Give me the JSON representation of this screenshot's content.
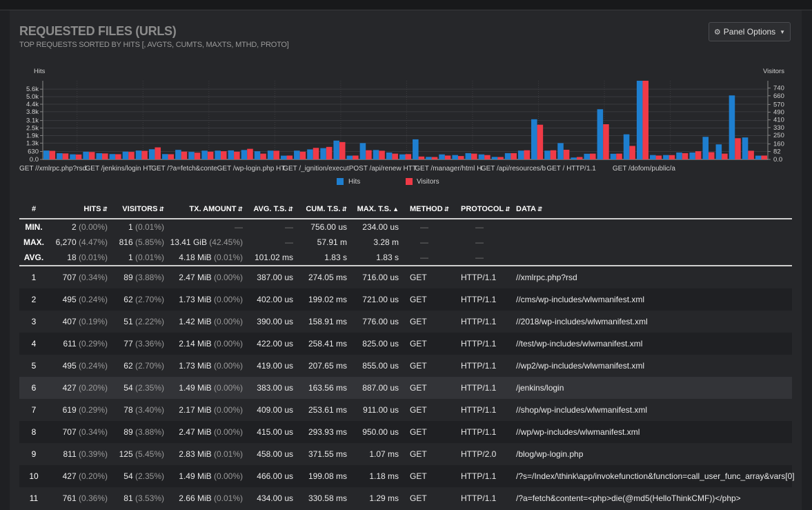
{
  "panel": {
    "title": "REQUESTED FILES (URLS)",
    "subtitle": "TOP REQUESTS SORTED BY HITS [, AVGTS, CUMTS, MAXTS, MTHD, PROTO]",
    "options_label": "Panel Options",
    "options_icon": "gear-icon"
  },
  "colors": {
    "hits": "#1e7fd0",
    "visitors": "#f03a47"
  },
  "chart_data": {
    "type": "bar",
    "left_axis_title": "Hits",
    "right_axis_title": "Visitors",
    "left_ticks": [
      "0.0",
      "630",
      "1.3k",
      "1.9k",
      "2.5k",
      "3.1k",
      "3.8k",
      "4.4k",
      "5.0k",
      "5.6k"
    ],
    "left_tick_values": [
      0,
      630,
      1300,
      1900,
      2500,
      3100,
      3800,
      4400,
      5000,
      5600
    ],
    "right_ticks": [
      "0.0",
      "82",
      "160",
      "250",
      "330",
      "410",
      "490",
      "570",
      "660",
      "740"
    ],
    "right_tick_values": [
      0,
      82,
      160,
      250,
      330,
      410,
      490,
      570,
      660,
      740
    ],
    "ylim_hits": [
      0,
      6270
    ],
    "ylim_visitors": [
      0,
      816
    ],
    "category_labels": [
      "GET //xmlrpc.php?rsd",
      "GET /jenkins/login HT",
      "GET /?a=fetch&conte",
      "GET /wp-login.php HT",
      "GET /_ignition/execut",
      "POST /api/renew HTT",
      "GET /manager/html H",
      "GET /api/resources/b",
      "GET / HTTP/1.1",
      "GET /dofom/public/a"
    ],
    "category_label_index": [
      0,
      5,
      10,
      15,
      20,
      25,
      30,
      35,
      40,
      45
    ],
    "series": [
      {
        "name": "Hits",
        "values": [
          707,
          495,
          407,
          611,
          495,
          427,
          619,
          707,
          811,
          427,
          761,
          600,
          700,
          700,
          720,
          750,
          650,
          700,
          300,
          700,
          800,
          900,
          1500,
          300,
          1300,
          750,
          550,
          400,
          1600,
          200,
          400,
          350,
          500,
          400,
          200,
          500,
          700,
          3200,
          700,
          1300,
          150,
          450,
          4000,
          450,
          2000,
          6270,
          350,
          350,
          550,
          550,
          1800,
          1200,
          5100,
          1750,
          300
        ]
      },
      {
        "name": "Visitors",
        "values": [
          89,
          62,
          51,
          77,
          62,
          54,
          78,
          89,
          125,
          54,
          81,
          70,
          80,
          85,
          80,
          110,
          60,
          90,
          40,
          80,
          120,
          130,
          180,
          40,
          95,
          90,
          60,
          55,
          30,
          25,
          40,
          35,
          60,
          45,
          25,
          65,
          95,
          360,
          95,
          100,
          25,
          60,
          365,
          60,
          140,
          816,
          40,
          45,
          65,
          85,
          75,
          60,
          220,
          90,
          40
        ]
      }
    ]
  },
  "table": {
    "headers": {
      "idx": "#",
      "hits": "HITS",
      "visitors": "VISITORS",
      "tx": "TX. AMOUNT",
      "avg": "AVG. T.S.",
      "cum": "CUM. T.S.",
      "max": "MAX. T.S.",
      "method": "METHOD",
      "protocol": "PROTOCOL",
      "data": "DATA"
    },
    "stats": [
      {
        "label": "MIN.",
        "hits": "2",
        "hits_pct": "(0.00%)",
        "visitors": "1",
        "visitors_pct": "(0.01%)",
        "tx": "—",
        "tx_pct": "",
        "avg": "—",
        "cum": "756.00 us",
        "max": "234.00 us",
        "method": "—",
        "protocol": "—"
      },
      {
        "label": "MAX.",
        "hits": "6,270",
        "hits_pct": "(4.47%)",
        "visitors": "816",
        "visitors_pct": "(5.85%)",
        "tx": "13.41 GiB",
        "tx_pct": "(42.45%)",
        "avg": "—",
        "cum": "57.91 m",
        "max": "3.28 m",
        "method": "—",
        "protocol": "—"
      },
      {
        "label": "AVG.",
        "hits": "18",
        "hits_pct": "(0.01%)",
        "visitors": "1",
        "visitors_pct": "(0.01%)",
        "tx": "4.18 MiB",
        "tx_pct": "(0.01%)",
        "avg": "101.02 ms",
        "cum": "1.83 s",
        "max": "1.83 s",
        "method": "—",
        "protocol": "—"
      }
    ],
    "rows": [
      {
        "idx": "1",
        "hits": "707",
        "hits_pct": "(0.34%)",
        "visitors": "89",
        "visitors_pct": "(3.88%)",
        "tx": "2.47 MiB",
        "tx_pct": "(0.00%)",
        "avg": "387.00 us",
        "cum": "274.05 ms",
        "max": "716.00 us",
        "method": "GET",
        "protocol": "HTTP/1.1",
        "data": "//xmlrpc.php?rsd"
      },
      {
        "idx": "2",
        "hits": "495",
        "hits_pct": "(0.24%)",
        "visitors": "62",
        "visitors_pct": "(2.70%)",
        "tx": "1.73 MiB",
        "tx_pct": "(0.00%)",
        "avg": "402.00 us",
        "cum": "199.02 ms",
        "max": "721.00 us",
        "method": "GET",
        "protocol": "HTTP/1.1",
        "data": "//cms/wp-includes/wlwmanifest.xml"
      },
      {
        "idx": "3",
        "hits": "407",
        "hits_pct": "(0.19%)",
        "visitors": "51",
        "visitors_pct": "(2.22%)",
        "tx": "1.42 MiB",
        "tx_pct": "(0.00%)",
        "avg": "390.00 us",
        "cum": "158.91 ms",
        "max": "776.00 us",
        "method": "GET",
        "protocol": "HTTP/1.1",
        "data": "//2018/wp-includes/wlwmanifest.xml"
      },
      {
        "idx": "4",
        "hits": "611",
        "hits_pct": "(0.29%)",
        "visitors": "77",
        "visitors_pct": "(3.36%)",
        "tx": "2.14 MiB",
        "tx_pct": "(0.00%)",
        "avg": "422.00 us",
        "cum": "258.41 ms",
        "max": "825.00 us",
        "method": "GET",
        "protocol": "HTTP/1.1",
        "data": "//test/wp-includes/wlwmanifest.xml"
      },
      {
        "idx": "5",
        "hits": "495",
        "hits_pct": "(0.24%)",
        "visitors": "62",
        "visitors_pct": "(2.70%)",
        "tx": "1.73 MiB",
        "tx_pct": "(0.00%)",
        "avg": "419.00 us",
        "cum": "207.65 ms",
        "max": "855.00 us",
        "method": "GET",
        "protocol": "HTTP/1.1",
        "data": "//wp2/wp-includes/wlwmanifest.xml"
      },
      {
        "idx": "6",
        "hits": "427",
        "hits_pct": "(0.20%)",
        "visitors": "54",
        "visitors_pct": "(2.35%)",
        "tx": "1.49 MiB",
        "tx_pct": "(0.00%)",
        "avg": "383.00 us",
        "cum": "163.56 ms",
        "max": "887.00 us",
        "method": "GET",
        "protocol": "HTTP/1.1",
        "data": "/jenkins/login"
      },
      {
        "idx": "7",
        "hits": "619",
        "hits_pct": "(0.29%)",
        "visitors": "78",
        "visitors_pct": "(3.40%)",
        "tx": "2.17 MiB",
        "tx_pct": "(0.00%)",
        "avg": "409.00 us",
        "cum": "253.61 ms",
        "max": "911.00 us",
        "method": "GET",
        "protocol": "HTTP/1.1",
        "data": "//shop/wp-includes/wlwmanifest.xml"
      },
      {
        "idx": "8",
        "hits": "707",
        "hits_pct": "(0.34%)",
        "visitors": "89",
        "visitors_pct": "(3.88%)",
        "tx": "2.47 MiB",
        "tx_pct": "(0.00%)",
        "avg": "415.00 us",
        "cum": "293.93 ms",
        "max": "950.00 us",
        "method": "GET",
        "protocol": "HTTP/1.1",
        "data": "//wp/wp-includes/wlwmanifest.xml"
      },
      {
        "idx": "9",
        "hits": "811",
        "hits_pct": "(0.39%)",
        "visitors": "125",
        "visitors_pct": "(5.45%)",
        "tx": "2.83 MiB",
        "tx_pct": "(0.01%)",
        "avg": "458.00 us",
        "cum": "371.55 ms",
        "max": "1.07 ms",
        "method": "GET",
        "protocol": "HTTP/2.0",
        "data": "/blog/wp-login.php"
      },
      {
        "idx": "10",
        "hits": "427",
        "hits_pct": "(0.20%)",
        "visitors": "54",
        "visitors_pct": "(2.35%)",
        "tx": "1.49 MiB",
        "tx_pct": "(0.00%)",
        "avg": "466.00 us",
        "cum": "199.08 ms",
        "max": "1.18 ms",
        "method": "GET",
        "protocol": "HTTP/1.1",
        "data": "/?s=/Index/\\think\\app/invokefunction&function=call_user_func_array&vars[0]"
      },
      {
        "idx": "11",
        "hits": "761",
        "hits_pct": "(0.36%)",
        "visitors": "81",
        "visitors_pct": "(3.53%)",
        "tx": "2.66 MiB",
        "tx_pct": "(0.01%)",
        "avg": "434.00 us",
        "cum": "330.58 ms",
        "max": "1.29 ms",
        "method": "GET",
        "protocol": "HTTP/1.1",
        "data": "/?a=fetch&content=<php>die(@md5(HelloThinkCMF))</php>"
      }
    ]
  }
}
